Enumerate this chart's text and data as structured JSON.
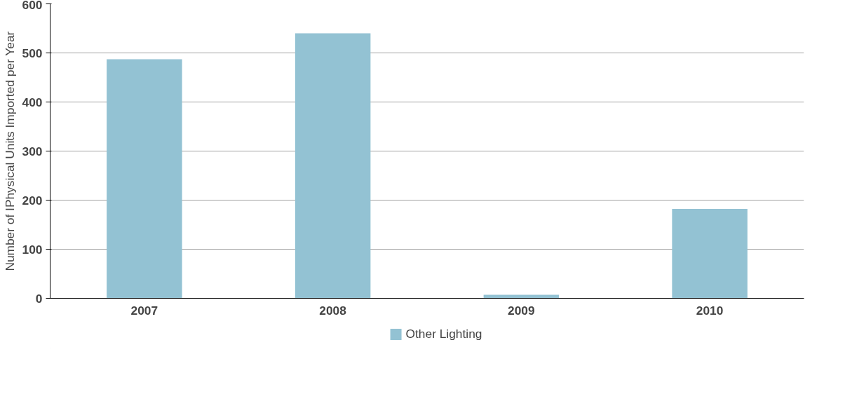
{
  "chart_data": {
    "type": "bar",
    "ylabel": "Number of IPhysical Units Imported per Year",
    "categories": [
      "2007",
      "2008",
      "2009",
      "2010"
    ],
    "series": [
      {
        "name": "Other Lighting",
        "color": "#93c2d3",
        "values": [
          487,
          540,
          7,
          182
        ]
      }
    ],
    "ylim": [
      0,
      600
    ],
    "yticks": [
      0,
      100,
      200,
      300,
      400,
      500,
      600
    ],
    "grid": "y",
    "legend": "bottom"
  }
}
